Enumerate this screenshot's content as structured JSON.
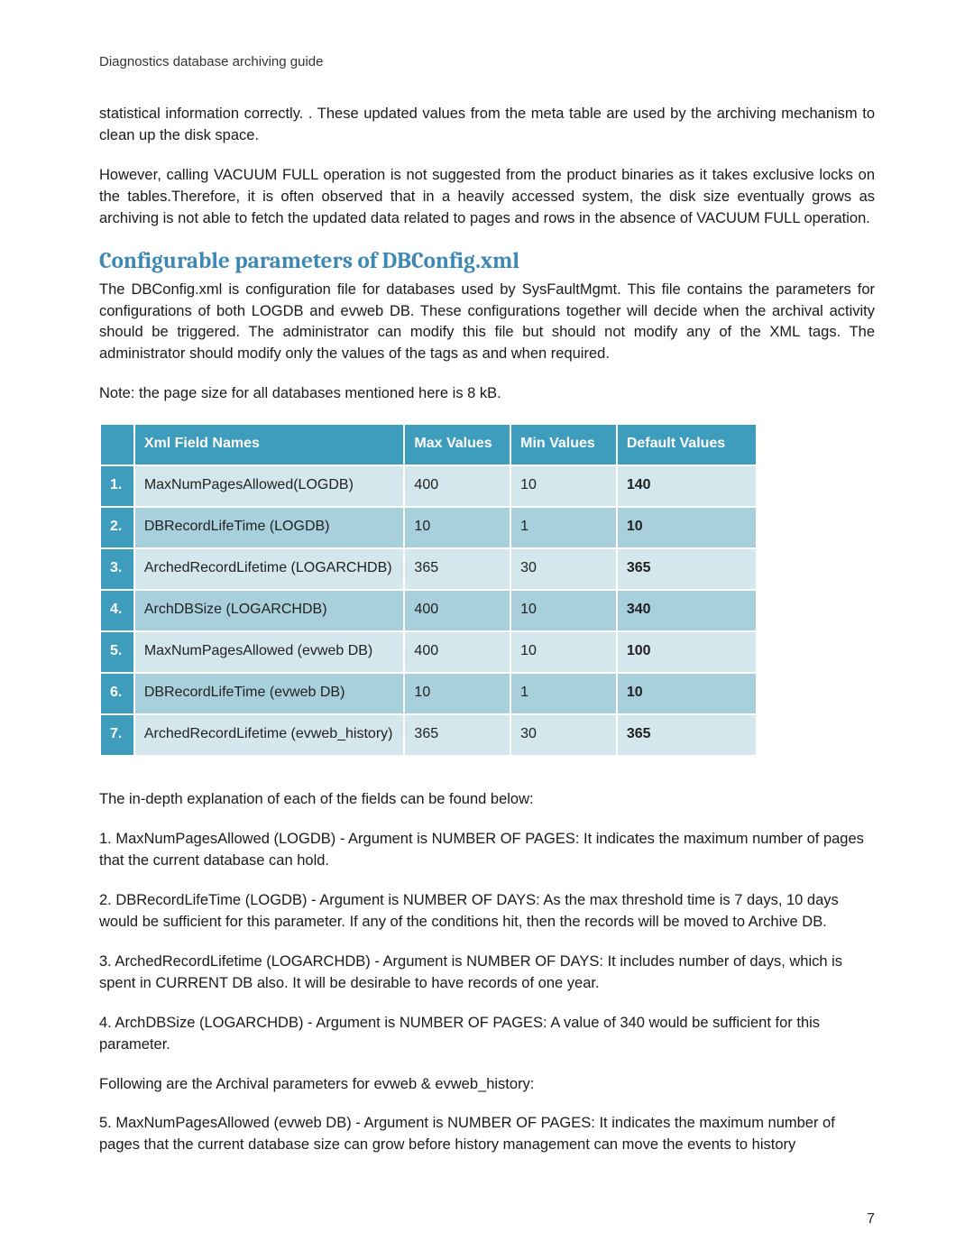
{
  "header": "Diagnostics database archiving guide",
  "paragraphs": {
    "p1": "statistical information correctly. . These updated values from the meta table are used by the archiving mechanism to clean up the disk space.",
    "p2": "However, calling VACUUM FULL operation is not suggested from the product binaries as it takes exclusive locks on the tables.Therefore, it is often observed that in a heavily accessed system, the disk size eventually grows as archiving is not able to fetch the updated data related to pages and rows in the absence of VACUUM FULL operation.",
    "section_title": "Configurable parameters of DBConfig.xml",
    "p3": "The DBConfig.xml is configuration file for databases used by SysFaultMgmt.  This file contains the parameters for configurations of both LOGDB and evweb DB. These configurations together will decide when the archival activity should be triggered. The administrator can modify this file but should not modify any of the XML tags. The administrator should modify only the values of the tags as and when required.",
    "note": " Note: the page size for all databases mentioned here is 8 kB.",
    "below": " The in-depth explanation of each of the fields can be found below:",
    "d1": "1. MaxNumPagesAllowed (LOGDB) - Argument is NUMBER OF PAGES: It indicates the maximum number of pages that the current database can hold.",
    "d2": " 2. DBRecordLifeTime (LOGDB) - Argument is NUMBER OF DAYS: As the max threshold time is 7 days, 10 days would be sufficient for this parameter. If any of the conditions hit, then the records will be moved to Archive DB.",
    "d3": "3. ArchedRecordLifetime (LOGARCHDB) - Argument is NUMBER OF DAYS: It includes number of days, which is spent in CURRENT DB also. It will be desirable to have records of one year.",
    "d4": "4. ArchDBSize (LOGARCHDB) - Argument is NUMBER OF PAGES: A value of 340 would be sufficient for this parameter.",
    "d5": " Following are the Archival parameters for evweb & evweb_history:",
    "d6": "5. MaxNumPagesAllowed (evweb DB) - Argument is NUMBER OF PAGES: It indicates the maximum number of pages that the current database size can grow before history management can move the events to history"
  },
  "table": {
    "headers": {
      "num": "",
      "name": "Xml Field Names",
      "max": "Max Values",
      "min": "Min Values",
      "def": "Default Values"
    },
    "rows": [
      {
        "num": "1.",
        "name": "MaxNumPagesAllowed(LOGDB)",
        "max": "400",
        "min": "10",
        "def": "140",
        "shade": "light"
      },
      {
        "num": "2.",
        "name": "DBRecordLifeTime (LOGDB)",
        "max": "10",
        "min": "1",
        "def": "10",
        "shade": "dark"
      },
      {
        "num": "3.",
        "name": "ArchedRecordLifetime (LOGARCHDB)",
        "max": "365",
        "min": "30",
        "def": "365",
        "shade": "light"
      },
      {
        "num": "4.",
        "name": "ArchDBSize (LOGARCHDB)",
        "max": "400",
        "min": "10",
        "def": "340",
        "shade": "dark"
      },
      {
        "num": "5.",
        "name": "MaxNumPagesAllowed (evweb DB)",
        "max": "400",
        "min": "10",
        "def": "100",
        "shade": "light"
      },
      {
        "num": "6.",
        "name": "DBRecordLifeTime (evweb DB)",
        "max": "10",
        "min": "1",
        "def": "10",
        "shade": "dark"
      },
      {
        "num": "7.",
        "name": "ArchedRecordLifetime (evweb_history)",
        "max": "365",
        "min": "30",
        "def": "365",
        "shade": "light"
      }
    ]
  },
  "pagenum": "7",
  "colors": {
    "teal_header": "#3e9cbc",
    "row_light": "#d3e7ed",
    "row_dark": "#a8d0dc",
    "title_blue": "#3b88b5"
  }
}
